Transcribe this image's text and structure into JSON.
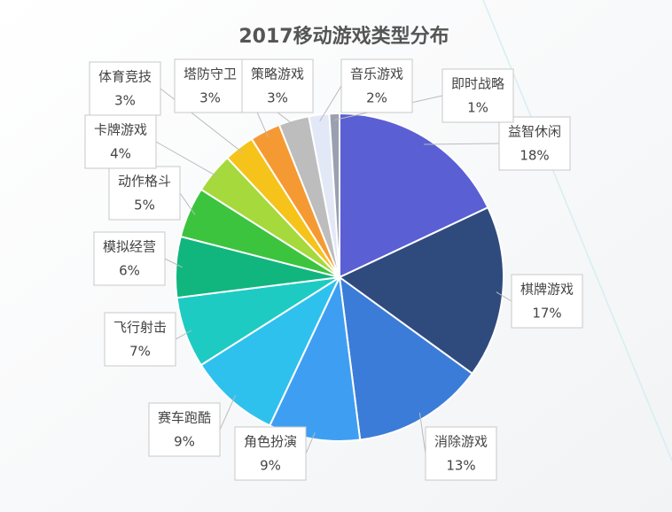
{
  "chart_data": {
    "type": "pie",
    "title": "2017移动游戏类型分布",
    "categories": [
      "益智休闲",
      "棋牌游戏",
      "消除游戏",
      "角色扮演",
      "赛车跑酷",
      "飞行射击",
      "模拟经营",
      "动作格斗",
      "卡牌游戏",
      "体育竞技",
      "塔防守卫",
      "策略游戏",
      "音乐游戏",
      "即时战略"
    ],
    "values": [
      18,
      17,
      13,
      9,
      9,
      7,
      6,
      5,
      4,
      3,
      3,
      3,
      2,
      1
    ],
    "value_labels": [
      "18%",
      "17%",
      "13%",
      "9%",
      "9%",
      "7%",
      "6%",
      "5%",
      "4%",
      "3%",
      "3%",
      "3%",
      "2%",
      "1%"
    ],
    "colors": [
      "#5a5fd4",
      "#2f4b7e",
      "#3b7cd8",
      "#3e9ff2",
      "#2fc1ee",
      "#1dcbc3",
      "#10b67e",
      "#3cc43e",
      "#a5d93c",
      "#f6c31b",
      "#f59a33",
      "#bdbdbd",
      "#e3e8f6",
      "#9aa0b0"
    ]
  }
}
